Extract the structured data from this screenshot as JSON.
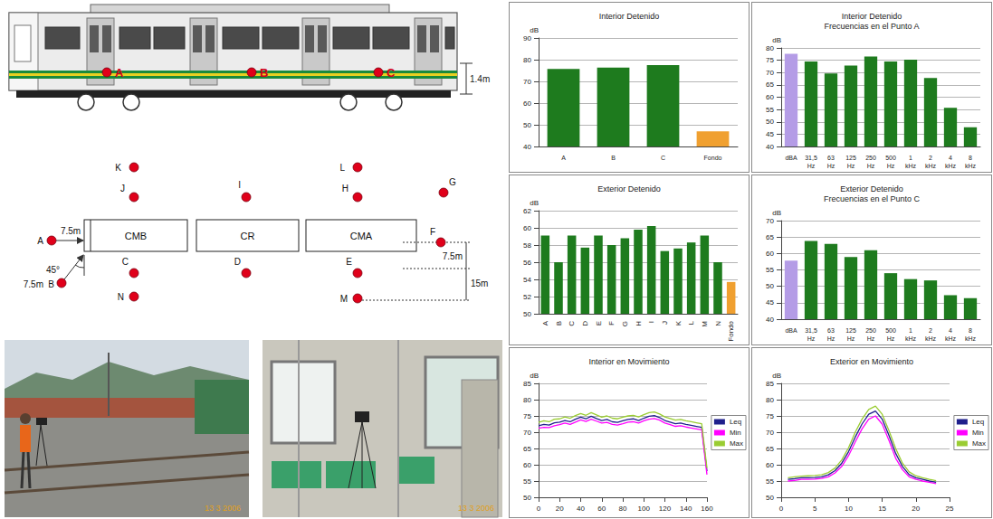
{
  "diagram": {
    "train": {
      "points": [
        "A",
        "B",
        "C"
      ],
      "height_label": "1.4m"
    },
    "layout": {
      "cars": [
        "CMB",
        "CR",
        "CMA"
      ],
      "points": [
        "K",
        "J",
        "I",
        "L",
        "H",
        "G",
        "F",
        "A",
        "C",
        "D",
        "E",
        "N",
        "M",
        "B"
      ],
      "dimensions": [
        "7.5m",
        "45°",
        "7.5m",
        "7.5m",
        "15m"
      ]
    },
    "photos": [
      {
        "date": "13 3 2006"
      },
      {
        "date": "13 3 2006"
      }
    ]
  },
  "chart_data": [
    {
      "type": "bar",
      "title": "Interior Detenido",
      "y_label": "dB",
      "categories": [
        "A",
        "B",
        "C",
        "Fondo"
      ],
      "values": [
        75.7,
        76.4,
        77.5,
        47
      ],
      "colors": [
        "#1e7b1e",
        "#1e7b1e",
        "#1e7b1e",
        "#f0a030"
      ],
      "ylim": [
        40,
        90
      ],
      "yticks": [
        40,
        50,
        60,
        70,
        80,
        90
      ],
      "grid": true
    },
    {
      "type": "bar",
      "title": "Interior Detenido Frecuencias en el Punto A",
      "y_label": "dB",
      "categories": [
        "dBA",
        "31,5 Hz",
        "63 Hz",
        "125 Hz",
        "250 Hz",
        "500 Hz",
        "1 kHz",
        "2 kHz",
        "4 kHz",
        "8 kHz"
      ],
      "values": [
        77.6,
        74.5,
        69.6,
        72.8,
        76.5,
        74.5,
        75.2,
        67.8,
        55.7,
        47.8
      ],
      "colors": [
        "#b49ce6",
        "#1e7b1e",
        "#1e7b1e",
        "#1e7b1e",
        "#1e7b1e",
        "#1e7b1e",
        "#1e7b1e",
        "#1e7b1e",
        "#1e7b1e",
        "#1e7b1e"
      ],
      "ylim": [
        40,
        80
      ],
      "yticks": [
        40,
        45,
        50,
        55,
        60,
        65,
        70,
        75,
        80
      ],
      "grid": true
    },
    {
      "type": "bar",
      "title": "Exterior Detenido",
      "y_label": "dB",
      "categories": [
        "A",
        "B",
        "C",
        "D",
        "E",
        "F",
        "G",
        "H",
        "I",
        "J",
        "K",
        "L",
        "M",
        "N",
        "Fondo"
      ],
      "values": [
        59.1,
        56,
        59.1,
        57.7,
        59.1,
        58,
        58.8,
        59.8,
        60.2,
        57.3,
        57.6,
        58.3,
        59.1,
        56,
        53.7
      ],
      "colors": [
        "#1e7b1e",
        "#1e7b1e",
        "#1e7b1e",
        "#1e7b1e",
        "#1e7b1e",
        "#1e7b1e",
        "#1e7b1e",
        "#1e7b1e",
        "#1e7b1e",
        "#1e7b1e",
        "#1e7b1e",
        "#1e7b1e",
        "#1e7b1e",
        "#1e7b1e",
        "#f0a030"
      ],
      "ylim": [
        50,
        62
      ],
      "yticks": [
        50,
        52,
        54,
        56,
        58,
        60,
        62
      ],
      "grid": true
    },
    {
      "type": "bar",
      "title": "Exterior Detenido Frecuencias en el Punto C",
      "y_label": "dB",
      "categories": [
        "dBA",
        "31,5 Hz",
        "63 Hz",
        "125 Hz",
        "250 Hz",
        "500 Hz",
        "1 kHz",
        "2 kHz",
        "4 kHz",
        "8 kHz"
      ],
      "values": [
        57.8,
        63.8,
        62.9,
        58.9,
        61,
        54,
        52.2,
        51.8,
        47.3,
        46.4
      ],
      "colors": [
        "#b49ce6",
        "#1e7b1e",
        "#1e7b1e",
        "#1e7b1e",
        "#1e7b1e",
        "#1e7b1e",
        "#1e7b1e",
        "#1e7b1e",
        "#1e7b1e",
        "#1e7b1e"
      ],
      "ylim": [
        40,
        70
      ],
      "yticks": [
        40,
        45,
        50,
        55,
        60,
        65,
        70
      ],
      "grid": true
    },
    {
      "type": "line",
      "title": "Interior en Movimiento",
      "y_label": "dB",
      "x": [
        0,
        5,
        10,
        15,
        20,
        25,
        30,
        35,
        40,
        45,
        50,
        55,
        60,
        65,
        70,
        75,
        80,
        85,
        90,
        95,
        100,
        105,
        110,
        115,
        120,
        125,
        130,
        135,
        140,
        145,
        150,
        155,
        160
      ],
      "series": [
        {
          "name": "Leq",
          "color": "#1f1f8c",
          "values": [
            72.0,
            72.4,
            72.2,
            72.9,
            73.1,
            73.6,
            73.2,
            74.0,
            74.6,
            74.1,
            74.9,
            74.2,
            73.6,
            73.9,
            73.2,
            73.0,
            73.5,
            73.9,
            74.1,
            73.6,
            74.3,
            74.9,
            75.1,
            74.5,
            73.6,
            73.1,
            72.6,
            72.8,
            72.4,
            72.1,
            71.8,
            71.5,
            58.0
          ]
        },
        {
          "name": "Min",
          "color": "#ff00ff",
          "values": [
            71.2,
            71.5,
            71.4,
            72.0,
            72.3,
            72.8,
            72.4,
            73.1,
            73.8,
            73.3,
            74.0,
            73.4,
            72.8,
            73.0,
            72.4,
            72.2,
            72.6,
            73.1,
            73.2,
            72.8,
            73.5,
            74.0,
            74.2,
            73.7,
            72.8,
            72.3,
            71.8,
            72.0,
            71.6,
            71.3,
            71.0,
            70.7,
            57.0
          ]
        },
        {
          "name": "Max",
          "color": "#9acd32",
          "values": [
            73.0,
            73.5,
            73.2,
            74.0,
            74.1,
            74.7,
            74.3,
            75.1,
            75.7,
            75.2,
            76.0,
            75.3,
            74.6,
            75.0,
            74.3,
            74.1,
            74.6,
            75.0,
            75.2,
            74.7,
            75.4,
            76.0,
            76.2,
            75.6,
            74.7,
            74.2,
            73.7,
            73.9,
            73.5,
            73.2,
            72.9,
            72.6,
            59.0
          ]
        }
      ],
      "xlim": [
        0,
        160
      ],
      "xticks": [
        0,
        20,
        40,
        60,
        80,
        100,
        120,
        140,
        160
      ],
      "ylim": [
        50,
        85
      ],
      "yticks": [
        50,
        55,
        60,
        65,
        70,
        75,
        80,
        85
      ],
      "legend": "right",
      "grid": true
    },
    {
      "type": "line",
      "title": "Exterior en Movimiento",
      "y_label": "dB",
      "x": [
        1,
        2,
        3,
        4,
        5,
        6,
        7,
        8,
        9,
        10,
        11,
        12,
        13,
        14,
        15,
        16,
        17,
        18,
        19,
        20,
        21,
        22,
        23
      ],
      "series": [
        {
          "name": "Leq",
          "color": "#1f1f8c",
          "values": [
            55.5,
            55.7,
            56.0,
            56.0,
            56.1,
            56.3,
            56.9,
            58.2,
            60.5,
            64.0,
            68.5,
            72.5,
            75.5,
            76.5,
            74.0,
            69.0,
            63.5,
            59.5,
            57.0,
            56.0,
            55.5,
            55.0,
            54.6
          ]
        },
        {
          "name": "Min",
          "color": "#ff00ff",
          "values": [
            55.0,
            55.2,
            55.5,
            55.5,
            55.6,
            55.8,
            56.3,
            57.5,
            59.5,
            62.8,
            67.0,
            71.0,
            74.0,
            75.0,
            72.5,
            67.5,
            62.0,
            58.5,
            56.3,
            55.5,
            55.0,
            54.6,
            54.2
          ]
        },
        {
          "name": "Max",
          "color": "#9acd32",
          "values": [
            56.0,
            56.3,
            56.5,
            56.6,
            56.7,
            56.9,
            57.6,
            59.0,
            61.5,
            65.2,
            70.0,
            74.0,
            77.0,
            78.0,
            75.5,
            70.5,
            65.0,
            60.5,
            57.8,
            56.6,
            56.0,
            55.5,
            55.1
          ]
        }
      ],
      "xlim": [
        0,
        25
      ],
      "xticks": [
        0,
        5,
        10,
        15,
        20,
        25
      ],
      "ylim": [
        50,
        85
      ],
      "yticks": [
        50,
        55,
        60,
        65,
        70,
        75,
        80,
        85
      ],
      "legend": "right",
      "grid": true
    }
  ]
}
